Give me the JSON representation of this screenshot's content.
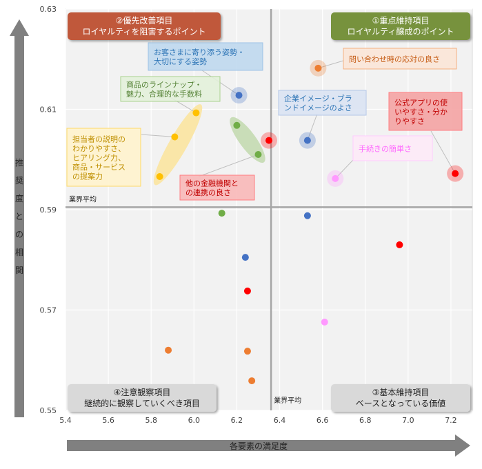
{
  "chart_data": {
    "type": "scatter",
    "title": "",
    "xlabel": "各要素の満足度",
    "ylabel": "推奨度との相関",
    "xlim": [
      5.4,
      7.3
    ],
    "ylim": [
      0.55,
      0.63
    ],
    "xticks": [
      "5.4",
      "5.6",
      "5.8",
      "6.0",
      "6.2",
      "6.4",
      "6.6",
      "6.8",
      "7.0",
      "7.2"
    ],
    "yticks": [
      "0.55",
      "0.57",
      "0.59",
      "0.61",
      "0.63"
    ],
    "grid": true,
    "average_x": 6.36,
    "average_y": 0.5905,
    "average_label": "業界平均",
    "quadrants": [
      {
        "id": "q2",
        "title": "②優先改善項目",
        "subtitle": "ロイヤルティを阻害するポイント",
        "position": "top-left",
        "color": "#c0593a"
      },
      {
        "id": "q1",
        "title": "①重点維持項目",
        "subtitle": "ロイヤルティ醸成のポイント",
        "position": "top-right",
        "color": "#77923c"
      },
      {
        "id": "q4",
        "title": "④注意観察項目",
        "subtitle": "継続的に観察していくべき項目",
        "position": "bottom-left",
        "color": "#d9d9d9"
      },
      {
        "id": "q3",
        "title": "③基本維持項目",
        "subtitle": "ベースとなっている価値",
        "position": "bottom-right",
        "color": "#d9d9d9"
      }
    ],
    "points": [
      {
        "x": 6.58,
        "y": 0.6182,
        "color": "#ed7d31",
        "halo": true
      },
      {
        "x": 6.21,
        "y": 0.6128,
        "color": "#4472c4",
        "halo": true
      },
      {
        "x": 6.01,
        "y": 0.6093,
        "color": "#ffc000"
      },
      {
        "x": 5.91,
        "y": 0.6045,
        "color": "#ffc000"
      },
      {
        "x": 5.84,
        "y": 0.5966,
        "color": "#ffc000"
      },
      {
        "x": 6.2,
        "y": 0.6068,
        "color": "#70ad47"
      },
      {
        "x": 6.3,
        "y": 0.601,
        "color": "#70ad47"
      },
      {
        "x": 6.35,
        "y": 0.6038,
        "color": "#ff0000",
        "halo": true
      },
      {
        "x": 6.53,
        "y": 0.6038,
        "color": "#4472c4",
        "halo": true
      },
      {
        "x": 6.66,
        "y": 0.5962,
        "color": "#ff99ff",
        "halo": true
      },
      {
        "x": 7.22,
        "y": 0.5972,
        "color": "#ff0000",
        "halo": true
      },
      {
        "x": 6.13,
        "y": 0.5893,
        "color": "#70ad47"
      },
      {
        "x": 6.53,
        "y": 0.5888,
        "color": "#4472c4"
      },
      {
        "x": 6.96,
        "y": 0.583,
        "color": "#ff0000"
      },
      {
        "x": 6.24,
        "y": 0.5805,
        "color": "#4472c4"
      },
      {
        "x": 6.25,
        "y": 0.5738,
        "color": "#ff0000"
      },
      {
        "x": 6.61,
        "y": 0.5676,
        "color": "#ff99ff"
      },
      {
        "x": 5.88,
        "y": 0.562,
        "color": "#ed7d31"
      },
      {
        "x": 6.25,
        "y": 0.5618,
        "color": "#ed7d31"
      },
      {
        "x": 6.27,
        "y": 0.5559,
        "color": "#ed7d31"
      }
    ],
    "callouts": [
      {
        "lines": [
          "問い合わせ時の応対の良さ"
        ],
        "bg": "#fbe5d6",
        "text_color": "#c55a11",
        "border": "#f4b183"
      },
      {
        "lines": [
          "お客さまに寄り添う姿勢・",
          "大切にする姿勢"
        ],
        "bg": "#bdd7ee",
        "text_color": "#2e75b6",
        "border": "#9dc3e6"
      },
      {
        "lines": [
          "商品のラインナップ・",
          "魅力、合理的な手数料"
        ],
        "bg": "#e2f0d9",
        "text_color": "#548235",
        "border": "#a9d18e"
      },
      {
        "lines": [
          "企業イメージ・ブラ",
          "ンドイメージのよさ"
        ],
        "bg": "#dae3f3",
        "text_color": "#2e75b6",
        "border": "#b4c7e7"
      },
      {
        "lines": [
          "公式アプリの使",
          "いやすさ・分か",
          "りやすさ"
        ],
        "bg": "#f4a0a0",
        "text_color": "#c00000",
        "border": "#ff7c80"
      },
      {
        "lines": [
          "担当者の説明の",
          "わかりやすさ、",
          "ヒアリング力、",
          "商品・サービス",
          "の提案力"
        ],
        "bg": "#fff2cc",
        "text_color": "#bf8f00",
        "border": "#ffd966"
      },
      {
        "lines": [
          "手続きの簡単さ"
        ],
        "bg": "#fde9f7",
        "text_color": "#ff66ff",
        "border": "#ffccff"
      },
      {
        "lines": [
          "他の金融機関と",
          "の連携の良さ"
        ],
        "bg": "#f8b6b6",
        "text_color": "#c00000",
        "border": "#ff7c80"
      }
    ]
  }
}
